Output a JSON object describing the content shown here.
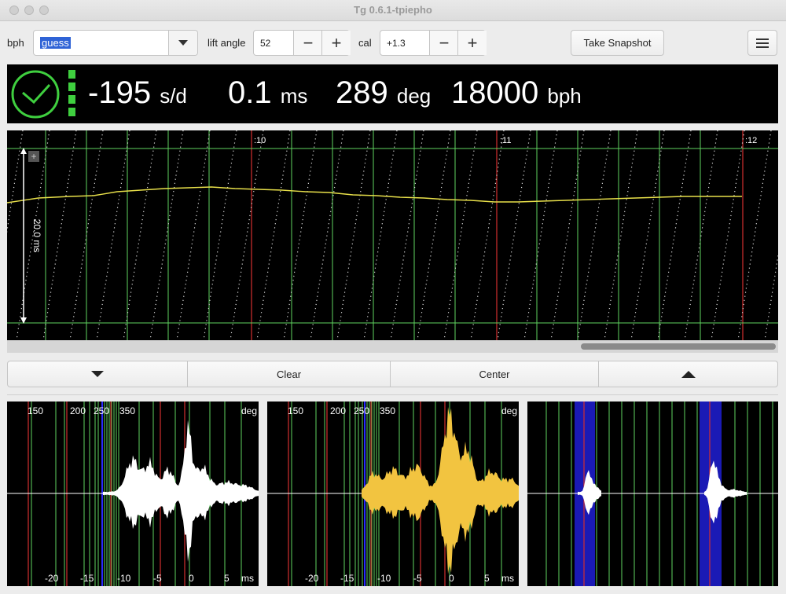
{
  "window": {
    "title": "Tg 0.6.1-tpiepho"
  },
  "toolbar": {
    "bph_label": "bph",
    "bph_value": "guess",
    "lift_angle_label": "lift angle",
    "lift_angle_value": "52",
    "cal_label": "cal",
    "cal_value": "+1.3",
    "minus": "−",
    "plus": "+",
    "snapshot_label": "Take Snapshot"
  },
  "readout": {
    "rate_value": "-195",
    "rate_unit": "s/d",
    "beat_error_value": "0.1",
    "beat_error_unit": "ms",
    "amplitude_value": "289",
    "amplitude_unit": "deg",
    "bph_value": "18000",
    "bph_unit": "bph"
  },
  "graph": {
    "time_labels": [
      ":10",
      ":11",
      ":12"
    ],
    "scale_label": "20.0 ms"
  },
  "controls": {
    "clear_label": "Clear",
    "center_label": "Center"
  },
  "waveform_panels": {
    "deg_ticks": [
      "150",
      "200",
      "250",
      "350"
    ],
    "deg_unit": "deg",
    "ms_ticks": [
      "-20",
      "-15",
      "-10",
      "-5",
      "0",
      "5"
    ],
    "ms_unit": "ms"
  },
  "colors": {
    "accent_green": "#3fcf3f",
    "trace_yellow": "#e8e04a",
    "grid_green": "#5fd35f",
    "marker_red": "#d33030",
    "wave_orange": "#f2c440",
    "highlight_blue": "#1a1ab5"
  },
  "icons": {
    "status": "clock-icon",
    "menu": "hamburger-icon",
    "dropdown": "chevron-down-icon"
  }
}
